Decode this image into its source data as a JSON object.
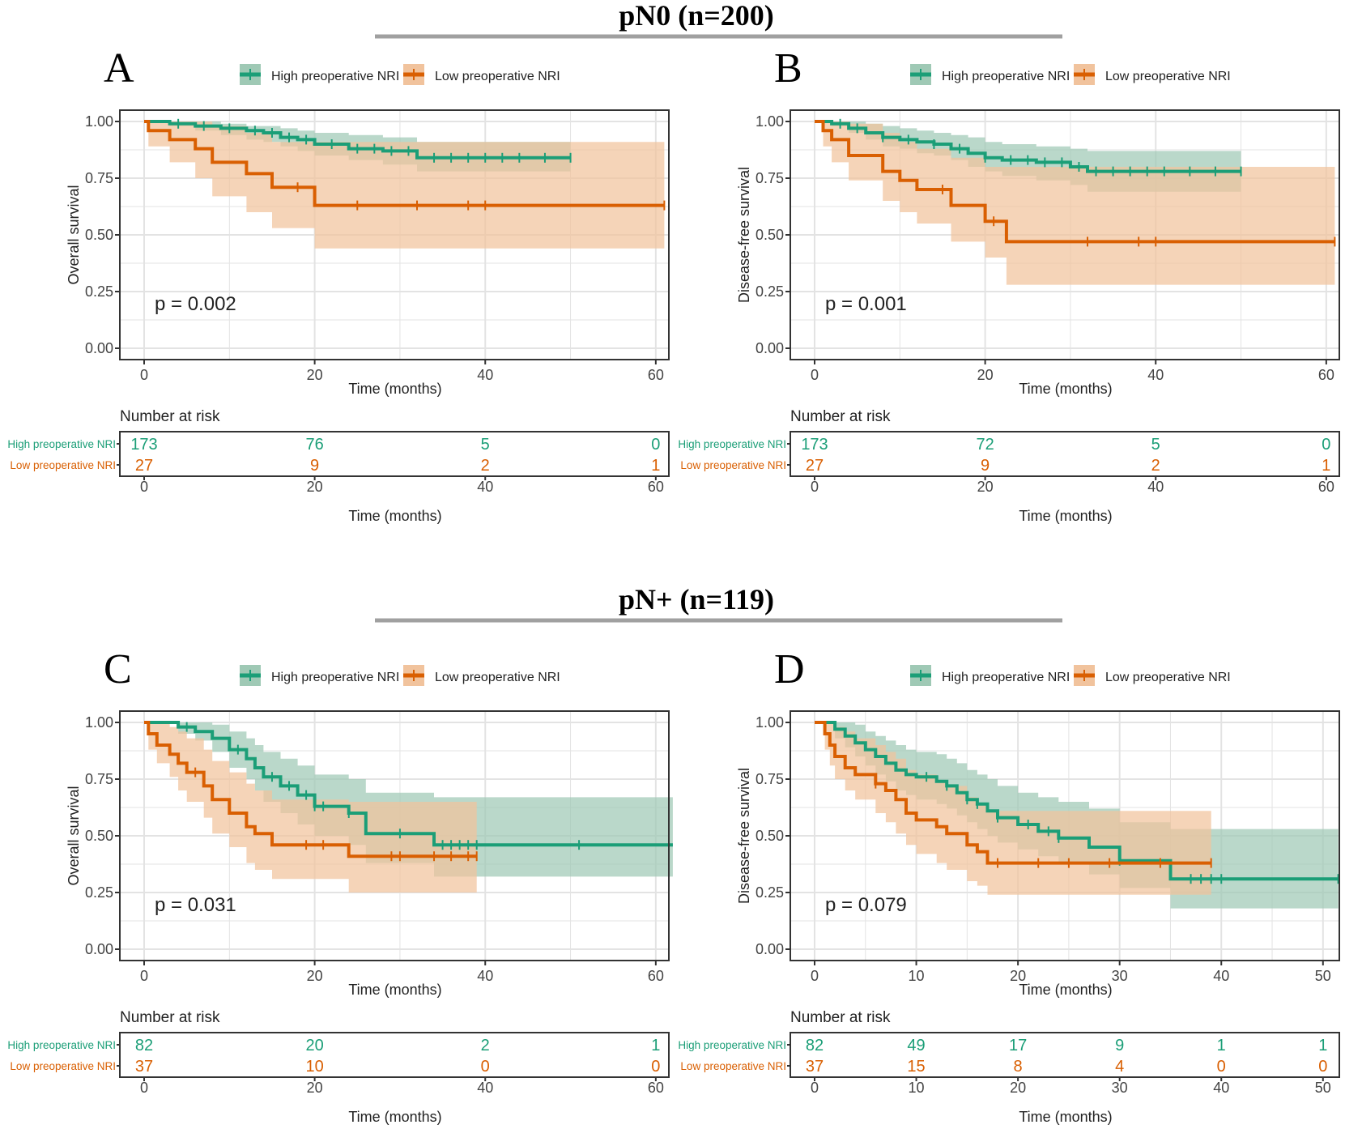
{
  "colors": {
    "high": "#1b9e77",
    "low": "#d95f02",
    "high_band": "#9fc9b5",
    "low_band": "#f1c39d",
    "grid": "#e3e3e3",
    "frame": "#333333",
    "divider": "#a0a0a0"
  },
  "sections": [
    {
      "title": "pN0 (n=200)"
    },
    {
      "title": "pN+ (n=119)"
    }
  ],
  "chart_data": [
    {
      "panel": "A",
      "type": "line",
      "ylabel": "Overall survival",
      "xlabel": "Time (months)",
      "xlim": [
        0,
        62
      ],
      "ylim": [
        0,
        1
      ],
      "xticks": [
        0,
        20,
        40,
        60
      ],
      "yticks": [
        0,
        0.25,
        0.5,
        0.75,
        1.0
      ],
      "yticklabels": [
        "0.00",
        "0.25",
        "0.50",
        "0.75",
        "1.00"
      ],
      "pvalue": "p = 0.002",
      "legend": [
        "High preoperative NRI",
        "Low preoperative NRI"
      ],
      "series": [
        {
          "name": "High preoperative NRI",
          "color_key": "high",
          "x": [
            0,
            3,
            6,
            9,
            12,
            14,
            16,
            18,
            20,
            24,
            28,
            32,
            50
          ],
          "y": [
            1.0,
            0.99,
            0.98,
            0.97,
            0.96,
            0.95,
            0.93,
            0.92,
            0.9,
            0.88,
            0.87,
            0.84,
            0.84
          ],
          "lower": [
            1.0,
            0.98,
            0.96,
            0.94,
            0.92,
            0.91,
            0.89,
            0.87,
            0.85,
            0.83,
            0.81,
            0.78,
            0.75
          ],
          "upper": [
            1.0,
            1.0,
            1.0,
            0.99,
            0.98,
            0.98,
            0.97,
            0.96,
            0.95,
            0.94,
            0.93,
            0.91,
            0.91
          ],
          "censor": [
            4,
            7,
            10,
            13,
            15,
            17,
            19,
            22,
            25,
            27,
            29,
            31,
            34,
            36,
            38,
            40,
            42,
            44,
            47,
            50
          ]
        },
        {
          "name": "Low preoperative NRI",
          "color_key": "low",
          "x": [
            0,
            0.5,
            3,
            6,
            8,
            12,
            15,
            20,
            61
          ],
          "y": [
            1.0,
            0.96,
            0.92,
            0.88,
            0.82,
            0.77,
            0.71,
            0.63,
            0.63
          ],
          "lower": [
            1.0,
            0.89,
            0.82,
            0.75,
            0.67,
            0.6,
            0.53,
            0.44,
            0.44
          ],
          "upper": [
            1.0,
            1.0,
            1.0,
            1.0,
            0.98,
            0.95,
            0.91,
            0.91,
            0.91
          ],
          "censor": [
            18,
            25,
            32,
            38,
            40,
            61
          ]
        }
      ],
      "risk": {
        "title": "Number at risk",
        "groups": [
          "High preoperative NRI",
          "Low preoperative NRI"
        ],
        "xticks": [
          0,
          20,
          40,
          60
        ],
        "high": [
          "173",
          "76",
          "5",
          "0"
        ],
        "low": [
          "27",
          "9",
          "2",
          "1"
        ]
      }
    },
    {
      "panel": "B",
      "type": "line",
      "ylabel": "Disease-free survival",
      "xlabel": "Time (months)",
      "xlim": [
        0,
        62
      ],
      "ylim": [
        0,
        1
      ],
      "xticks": [
        0,
        20,
        40,
        60
      ],
      "yticks": [
        0,
        0.25,
        0.5,
        0.75,
        1.0
      ],
      "yticklabels": [
        "0.00",
        "0.25",
        "0.50",
        "0.75",
        "1.00"
      ],
      "pvalue": "p = 0.001",
      "legend": [
        "High preoperative NRI",
        "Low preoperative NRI"
      ],
      "series": [
        {
          "name": "High preoperative NRI",
          "color_key": "high",
          "x": [
            0,
            2,
            4,
            6,
            8,
            10,
            12,
            14,
            16,
            18,
            20,
            22,
            26,
            30,
            32,
            50
          ],
          "y": [
            1.0,
            0.99,
            0.97,
            0.95,
            0.93,
            0.92,
            0.91,
            0.9,
            0.88,
            0.86,
            0.84,
            0.83,
            0.82,
            0.8,
            0.78,
            0.78
          ],
          "lower": [
            1.0,
            0.98,
            0.95,
            0.92,
            0.89,
            0.88,
            0.86,
            0.85,
            0.83,
            0.8,
            0.78,
            0.76,
            0.74,
            0.72,
            0.69,
            0.68
          ],
          "upper": [
            1.0,
            1.0,
            1.0,
            0.99,
            0.98,
            0.97,
            0.96,
            0.95,
            0.94,
            0.93,
            0.91,
            0.9,
            0.89,
            0.88,
            0.87,
            0.87
          ],
          "censor": [
            3,
            5,
            8,
            11,
            14,
            17,
            20,
            23,
            25,
            27,
            29,
            31,
            33,
            35,
            37,
            39,
            41,
            44,
            47,
            50
          ]
        },
        {
          "name": "Low preoperative NRI",
          "color_key": "low",
          "x": [
            0,
            1,
            2,
            4,
            8,
            10,
            12,
            16,
            20,
            22.5,
            61
          ],
          "y": [
            1.0,
            0.96,
            0.92,
            0.85,
            0.78,
            0.74,
            0.7,
            0.63,
            0.56,
            0.47,
            0.47
          ],
          "lower": [
            1.0,
            0.89,
            0.82,
            0.74,
            0.65,
            0.6,
            0.55,
            0.47,
            0.4,
            0.28,
            0.28
          ],
          "upper": [
            1.0,
            1.0,
            1.0,
            0.99,
            0.95,
            0.91,
            0.88,
            0.84,
            0.8,
            0.8,
            0.8
          ],
          "censor": [
            15,
            21,
            32,
            38,
            40,
            61
          ]
        }
      ],
      "risk": {
        "title": "Number at risk",
        "groups": [
          "High preoperative NRI",
          "Low preoperative NRI"
        ],
        "xticks": [
          0,
          20,
          40,
          60
        ],
        "high": [
          "173",
          "72",
          "5",
          "0"
        ],
        "low": [
          "27",
          "9",
          "2",
          "1"
        ]
      }
    },
    {
      "panel": "C",
      "type": "line",
      "ylabel": "Overall survival",
      "xlabel": "Time (months)",
      "xlim": [
        0,
        62
      ],
      "ylim": [
        0,
        1
      ],
      "xticks": [
        0,
        20,
        40,
        60
      ],
      "yticks": [
        0,
        0.25,
        0.5,
        0.75,
        1.0
      ],
      "yticklabels": [
        "0.00",
        "0.25",
        "0.50",
        "0.75",
        "1.00"
      ],
      "pvalue": "p = 0.031",
      "legend": [
        "High preoperative NRI",
        "Low preoperative NRI"
      ],
      "series": [
        {
          "name": "High preoperative NRI",
          "color_key": "high",
          "x": [
            0,
            4,
            6,
            8,
            10,
            12,
            13,
            14,
            16,
            18,
            20,
            24,
            26,
            34,
            62
          ],
          "y": [
            1.0,
            0.98,
            0.96,
            0.93,
            0.88,
            0.84,
            0.8,
            0.76,
            0.72,
            0.68,
            0.63,
            0.6,
            0.51,
            0.46,
            0.46
          ],
          "lower": [
            1.0,
            0.95,
            0.92,
            0.87,
            0.8,
            0.75,
            0.7,
            0.65,
            0.6,
            0.55,
            0.5,
            0.46,
            0.38,
            0.32,
            0.32
          ],
          "upper": [
            1.0,
            1.0,
            1.0,
            0.99,
            0.96,
            0.93,
            0.9,
            0.87,
            0.84,
            0.81,
            0.77,
            0.75,
            0.69,
            0.67,
            0.67
          ],
          "censor": [
            5,
            11,
            15,
            17,
            19,
            20,
            21,
            24,
            30,
            35,
            36,
            37,
            38,
            39,
            51
          ]
        },
        {
          "name": "Low preoperative NRI",
          "color_key": "low",
          "x": [
            0,
            0.5,
            1.5,
            3,
            4,
            5,
            7,
            8,
            10,
            12,
            13,
            15,
            24,
            39
          ],
          "y": [
            1.0,
            0.95,
            0.9,
            0.86,
            0.82,
            0.78,
            0.72,
            0.66,
            0.6,
            0.54,
            0.51,
            0.46,
            0.41,
            0.41
          ],
          "lower": [
            1.0,
            0.88,
            0.82,
            0.76,
            0.7,
            0.65,
            0.58,
            0.51,
            0.45,
            0.38,
            0.35,
            0.31,
            0.25,
            0.25
          ],
          "upper": [
            1.0,
            1.0,
            1.0,
            0.98,
            0.96,
            0.93,
            0.88,
            0.83,
            0.78,
            0.73,
            0.7,
            0.66,
            0.65,
            0.65
          ],
          "censor": [
            6,
            19,
            21,
            29,
            30,
            34,
            36,
            38,
            39
          ]
        }
      ],
      "risk": {
        "title": "Number at risk",
        "groups": [
          "High preoperative NRI",
          "Low preoperative NRI"
        ],
        "xticks": [
          0,
          20,
          40,
          60
        ],
        "high": [
          "82",
          "20",
          "2",
          "1"
        ],
        "low": [
          "37",
          "10",
          "0",
          "0"
        ]
      }
    },
    {
      "panel": "D",
      "type": "line",
      "ylabel": "Disease-free survival",
      "xlabel": "Time (months)",
      "xlim": [
        0,
        52
      ],
      "ylim": [
        0,
        1
      ],
      "xticks": [
        0,
        10,
        20,
        30,
        40,
        50
      ],
      "yticks": [
        0,
        0.25,
        0.5,
        0.75,
        1.0
      ],
      "yticklabels": [
        "0.00",
        "0.25",
        "0.50",
        "0.75",
        "1.00"
      ],
      "pvalue": "p = 0.079",
      "legend": [
        "High preoperative NRI",
        "Low preoperative NRI"
      ],
      "series": [
        {
          "name": "High preoperative NRI",
          "color_key": "high",
          "x": [
            0,
            2,
            3,
            4,
            5,
            6,
            7,
            8,
            9,
            10,
            12,
            13,
            14,
            15,
            16,
            17,
            18,
            20,
            22,
            24,
            27,
            30,
            35,
            51.5
          ],
          "y": [
            1.0,
            0.97,
            0.94,
            0.91,
            0.88,
            0.85,
            0.82,
            0.79,
            0.77,
            0.76,
            0.74,
            0.72,
            0.69,
            0.66,
            0.64,
            0.61,
            0.58,
            0.55,
            0.52,
            0.49,
            0.45,
            0.39,
            0.31,
            0.31
          ],
          "lower": [
            1.0,
            0.93,
            0.89,
            0.85,
            0.81,
            0.77,
            0.74,
            0.7,
            0.68,
            0.66,
            0.64,
            0.62,
            0.59,
            0.56,
            0.53,
            0.5,
            0.47,
            0.44,
            0.41,
            0.38,
            0.33,
            0.27,
            0.18,
            0.18
          ],
          "upper": [
            1.0,
            1.0,
            1.0,
            0.99,
            0.96,
            0.94,
            0.92,
            0.9,
            0.88,
            0.87,
            0.86,
            0.84,
            0.82,
            0.79,
            0.77,
            0.75,
            0.72,
            0.69,
            0.67,
            0.65,
            0.62,
            0.56,
            0.53,
            0.53
          ],
          "censor": [
            11,
            13,
            15,
            16,
            18,
            21,
            23,
            24,
            30,
            37,
            38,
            39,
            40,
            51.5
          ]
        },
        {
          "name": "Low preoperative NRI",
          "color_key": "low",
          "x": [
            0,
            1,
            1.5,
            2,
            3,
            4,
            6,
            7,
            8,
            9,
            10,
            12,
            13,
            15,
            16,
            17,
            39
          ],
          "y": [
            1.0,
            0.95,
            0.9,
            0.85,
            0.8,
            0.77,
            0.73,
            0.7,
            0.66,
            0.6,
            0.57,
            0.54,
            0.51,
            0.46,
            0.43,
            0.38,
            0.38
          ],
          "lower": [
            1.0,
            0.88,
            0.81,
            0.75,
            0.7,
            0.66,
            0.6,
            0.56,
            0.51,
            0.46,
            0.42,
            0.38,
            0.35,
            0.3,
            0.28,
            0.24,
            0.24
          ],
          "upper": [
            1.0,
            1.0,
            1.0,
            0.98,
            0.96,
            0.93,
            0.9,
            0.87,
            0.84,
            0.79,
            0.77,
            0.74,
            0.72,
            0.67,
            0.64,
            0.61,
            0.61
          ],
          "censor": [
            6,
            18,
            22,
            25,
            29,
            34,
            39
          ]
        }
      ],
      "risk": {
        "title": "Number at risk",
        "groups": [
          "High preoperative NRI",
          "Low preoperative NRI"
        ],
        "xticks": [
          0,
          10,
          20,
          30,
          40,
          50
        ],
        "high": [
          "82",
          "49",
          "17",
          "9",
          "1",
          "1"
        ],
        "low": [
          "37",
          "15",
          "8",
          "4",
          "0",
          "0"
        ]
      }
    }
  ]
}
